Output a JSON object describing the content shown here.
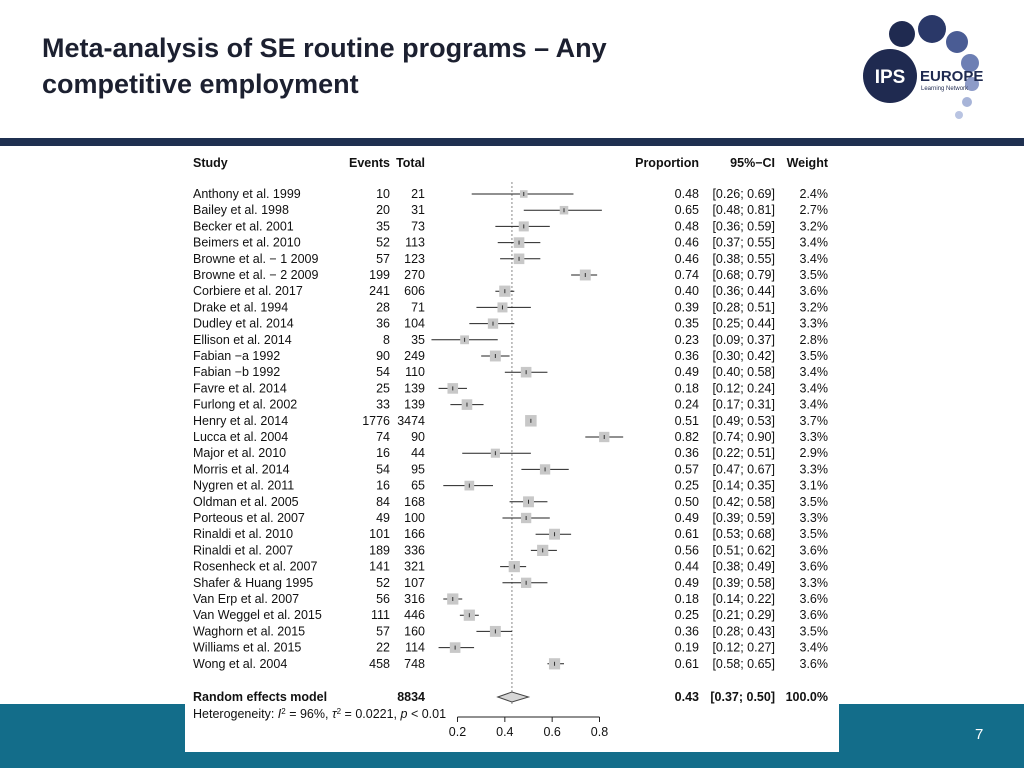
{
  "slide": {
    "title_line1": "Meta-analysis of SE routine programs – Any",
    "title_line2": "competitive employment",
    "page_number": "7"
  },
  "logo": {
    "ips_text": "IPS",
    "europe_text": "EUROPE",
    "subtitle_text": "Learning Network",
    "colors": {
      "dark_navy": "#1f2a50",
      "mid_blue": "#4a5c94",
      "light_blue": "#8d9bc8",
      "pale_blue": "#b9c4e2"
    }
  },
  "colors": {
    "top_band": "#1f3050",
    "bottom_band": "#136d8a",
    "ci_box": "#c8c8c8",
    "diamond": "#d6d6d6"
  },
  "chart_data": {
    "type": "forest",
    "headers": {
      "study": "Study",
      "events": "Events",
      "total": "Total",
      "proportion": "Proportion",
      "ci": "95%−CI",
      "weight": "Weight"
    },
    "studies": [
      {
        "study": "Anthony et al. 1999",
        "events": "10",
        "total": "21",
        "proportion": 0.48,
        "ci_low": 0.26,
        "ci_high": 0.69,
        "prop_text": "0.48",
        "ci_text": "[0.26; 0.69]",
        "weight": "2.4%",
        "weight_value": 2.4
      },
      {
        "study": "Bailey et al. 1998",
        "events": "20",
        "total": "31",
        "proportion": 0.65,
        "ci_low": 0.48,
        "ci_high": 0.81,
        "prop_text": "0.65",
        "ci_text": "[0.48; 0.81]",
        "weight": "2.7%",
        "weight_value": 2.7
      },
      {
        "study": "Becker et al. 2001",
        "events": "35",
        "total": "73",
        "proportion": 0.48,
        "ci_low": 0.36,
        "ci_high": 0.59,
        "prop_text": "0.48",
        "ci_text": "[0.36; 0.59]",
        "weight": "3.2%",
        "weight_value": 3.2
      },
      {
        "study": "Beimers et al. 2010",
        "events": "52",
        "total": "113",
        "proportion": 0.46,
        "ci_low": 0.37,
        "ci_high": 0.55,
        "prop_text": "0.46",
        "ci_text": "[0.37; 0.55]",
        "weight": "3.4%",
        "weight_value": 3.4
      },
      {
        "study": "Browne et al. − 1 2009",
        "events": "57",
        "total": "123",
        "proportion": 0.46,
        "ci_low": 0.38,
        "ci_high": 0.55,
        "prop_text": "0.46",
        "ci_text": "[0.38; 0.55]",
        "weight": "3.4%",
        "weight_value": 3.4
      },
      {
        "study": "Browne et al. − 2 2009",
        "events": "199",
        "total": "270",
        "proportion": 0.74,
        "ci_low": 0.68,
        "ci_high": 0.79,
        "prop_text": "0.74",
        "ci_text": "[0.68; 0.79]",
        "weight": "3.5%",
        "weight_value": 3.5
      },
      {
        "study": "Corbiere et al. 2017",
        "events": "241",
        "total": "606",
        "proportion": 0.4,
        "ci_low": 0.36,
        "ci_high": 0.44,
        "prop_text": "0.40",
        "ci_text": "[0.36; 0.44]",
        "weight": "3.6%",
        "weight_value": 3.6
      },
      {
        "study": "Drake et al. 1994",
        "events": "28",
        "total": "71",
        "proportion": 0.39,
        "ci_low": 0.28,
        "ci_high": 0.51,
        "prop_text": "0.39",
        "ci_text": "[0.28; 0.51]",
        "weight": "3.2%",
        "weight_value": 3.2
      },
      {
        "study": "Dudley et al. 2014",
        "events": "36",
        "total": "104",
        "proportion": 0.35,
        "ci_low": 0.25,
        "ci_high": 0.44,
        "prop_text": "0.35",
        "ci_text": "[0.25; 0.44]",
        "weight": "3.3%",
        "weight_value": 3.3
      },
      {
        "study": "Ellison et al. 2014",
        "events": "8",
        "total": "35",
        "proportion": 0.23,
        "ci_low": 0.09,
        "ci_high": 0.37,
        "prop_text": "0.23",
        "ci_text": "[0.09; 0.37]",
        "weight": "2.8%",
        "weight_value": 2.8
      },
      {
        "study": "Fabian −a 1992",
        "events": "90",
        "total": "249",
        "proportion": 0.36,
        "ci_low": 0.3,
        "ci_high": 0.42,
        "prop_text": "0.36",
        "ci_text": "[0.30; 0.42]",
        "weight": "3.5%",
        "weight_value": 3.5
      },
      {
        "study": "Fabian −b 1992",
        "events": "54",
        "total": "110",
        "proportion": 0.49,
        "ci_low": 0.4,
        "ci_high": 0.58,
        "prop_text": "0.49",
        "ci_text": "[0.40; 0.58]",
        "weight": "3.4%",
        "weight_value": 3.4
      },
      {
        "study": "Favre et al. 2014",
        "events": "25",
        "total": "139",
        "proportion": 0.18,
        "ci_low": 0.12,
        "ci_high": 0.24,
        "prop_text": "0.18",
        "ci_text": "[0.12; 0.24]",
        "weight": "3.4%",
        "weight_value": 3.4
      },
      {
        "study": "Furlong et al. 2002",
        "events": "33",
        "total": "139",
        "proportion": 0.24,
        "ci_low": 0.17,
        "ci_high": 0.31,
        "prop_text": "0.24",
        "ci_text": "[0.17; 0.31]",
        "weight": "3.4%",
        "weight_value": 3.4
      },
      {
        "study": "Henry et al. 2014",
        "events": "1776",
        "total": "3474",
        "proportion": 0.51,
        "ci_low": 0.49,
        "ci_high": 0.53,
        "prop_text": "0.51",
        "ci_text": "[0.49; 0.53]",
        "weight": "3.7%",
        "weight_value": 3.7
      },
      {
        "study": "Lucca et al. 2004",
        "events": "74",
        "total": "90",
        "proportion": 0.82,
        "ci_low": 0.74,
        "ci_high": 0.9,
        "prop_text": "0.82",
        "ci_text": "[0.74; 0.90]",
        "weight": "3.3%",
        "weight_value": 3.3
      },
      {
        "study": "Major et al. 2010",
        "events": "16",
        "total": "44",
        "proportion": 0.36,
        "ci_low": 0.22,
        "ci_high": 0.51,
        "prop_text": "0.36",
        "ci_text": "[0.22; 0.51]",
        "weight": "2.9%",
        "weight_value": 2.9
      },
      {
        "study": "Morris et al. 2014",
        "events": "54",
        "total": "95",
        "proportion": 0.57,
        "ci_low": 0.47,
        "ci_high": 0.67,
        "prop_text": "0.57",
        "ci_text": "[0.47; 0.67]",
        "weight": "3.3%",
        "weight_value": 3.3
      },
      {
        "study": "Nygren et al. 2011",
        "events": "16",
        "total": "65",
        "proportion": 0.25,
        "ci_low": 0.14,
        "ci_high": 0.35,
        "prop_text": "0.25",
        "ci_text": "[0.14; 0.35]",
        "weight": "3.1%",
        "weight_value": 3.1
      },
      {
        "study": "Oldman et al. 2005",
        "events": "84",
        "total": "168",
        "proportion": 0.5,
        "ci_low": 0.42,
        "ci_high": 0.58,
        "prop_text": "0.50",
        "ci_text": "[0.42; 0.58]",
        "weight": "3.5%",
        "weight_value": 3.5
      },
      {
        "study": "Porteous et al. 2007",
        "events": "49",
        "total": "100",
        "proportion": 0.49,
        "ci_low": 0.39,
        "ci_high": 0.59,
        "prop_text": "0.49",
        "ci_text": "[0.39; 0.59]",
        "weight": "3.3%",
        "weight_value": 3.3
      },
      {
        "study": "Rinaldi et al. 2010",
        "events": "101",
        "total": "166",
        "proportion": 0.61,
        "ci_low": 0.53,
        "ci_high": 0.68,
        "prop_text": "0.61",
        "ci_text": "[0.53; 0.68]",
        "weight": "3.5%",
        "weight_value": 3.5
      },
      {
        "study": "Rinaldi et al. 2007",
        "events": "189",
        "total": "336",
        "proportion": 0.56,
        "ci_low": 0.51,
        "ci_high": 0.62,
        "prop_text": "0.56",
        "ci_text": "[0.51; 0.62]",
        "weight": "3.6%",
        "weight_value": 3.6
      },
      {
        "study": "Rosenheck et al. 2007",
        "events": "141",
        "total": "321",
        "proportion": 0.44,
        "ci_low": 0.38,
        "ci_high": 0.49,
        "prop_text": "0.44",
        "ci_text": "[0.38; 0.49]",
        "weight": "3.6%",
        "weight_value": 3.6
      },
      {
        "study": "Shafer & Huang 1995",
        "events": "52",
        "total": "107",
        "proportion": 0.49,
        "ci_low": 0.39,
        "ci_high": 0.58,
        "prop_text": "0.49",
        "ci_text": "[0.39; 0.58]",
        "weight": "3.3%",
        "weight_value": 3.3
      },
      {
        "study": "Van Erp et al. 2007",
        "events": "56",
        "total": "316",
        "proportion": 0.18,
        "ci_low": 0.14,
        "ci_high": 0.22,
        "prop_text": "0.18",
        "ci_text": "[0.14; 0.22]",
        "weight": "3.6%",
        "weight_value": 3.6
      },
      {
        "study": "Van Weggel et al. 2015",
        "events": "111",
        "total": "446",
        "proportion": 0.25,
        "ci_low": 0.21,
        "ci_high": 0.29,
        "prop_text": "0.25",
        "ci_text": "[0.21; 0.29]",
        "weight": "3.6%",
        "weight_value": 3.6
      },
      {
        "study": "Waghorn et al. 2015",
        "events": "57",
        "total": "160",
        "proportion": 0.36,
        "ci_low": 0.28,
        "ci_high": 0.43,
        "prop_text": "0.36",
        "ci_text": "[0.28; 0.43]",
        "weight": "3.5%",
        "weight_value": 3.5
      },
      {
        "study": "Williams et al. 2015",
        "events": "22",
        "total": "114",
        "proportion": 0.19,
        "ci_low": 0.12,
        "ci_high": 0.27,
        "prop_text": "0.19",
        "ci_text": "[0.12; 0.27]",
        "weight": "3.4%",
        "weight_value": 3.4
      },
      {
        "study": "Wong et al. 2004",
        "events": "458",
        "total": "748",
        "proportion": 0.61,
        "ci_low": 0.58,
        "ci_high": 0.65,
        "prop_text": "0.61",
        "ci_text": "[0.58; 0.65]",
        "weight": "3.6%",
        "weight_value": 3.6
      }
    ],
    "pooled": {
      "label": "Random effects model",
      "total": "8834",
      "proportion": 0.43,
      "ci_low": 0.37,
      "ci_high": 0.5,
      "prop_text": "0.43",
      "ci_text": "[0.37; 0.50]",
      "weight": "100.0%"
    },
    "heterogeneity": {
      "prefix": "Heterogeneity: ",
      "i2_symbol": "I",
      "i2_value": " = 96%, ",
      "tau_symbol": "τ",
      "tau_value": " = 0.0221, ",
      "p_symbol": "p",
      "p_value": " < 0.01"
    },
    "axis": {
      "ticks": [
        0.2,
        0.4,
        0.6,
        0.8
      ],
      "tick_labels": [
        "0.2",
        "0.4",
        "0.6",
        "0.8"
      ],
      "xlim": [
        0.1,
        0.9
      ],
      "reference_line": 0.43
    }
  }
}
